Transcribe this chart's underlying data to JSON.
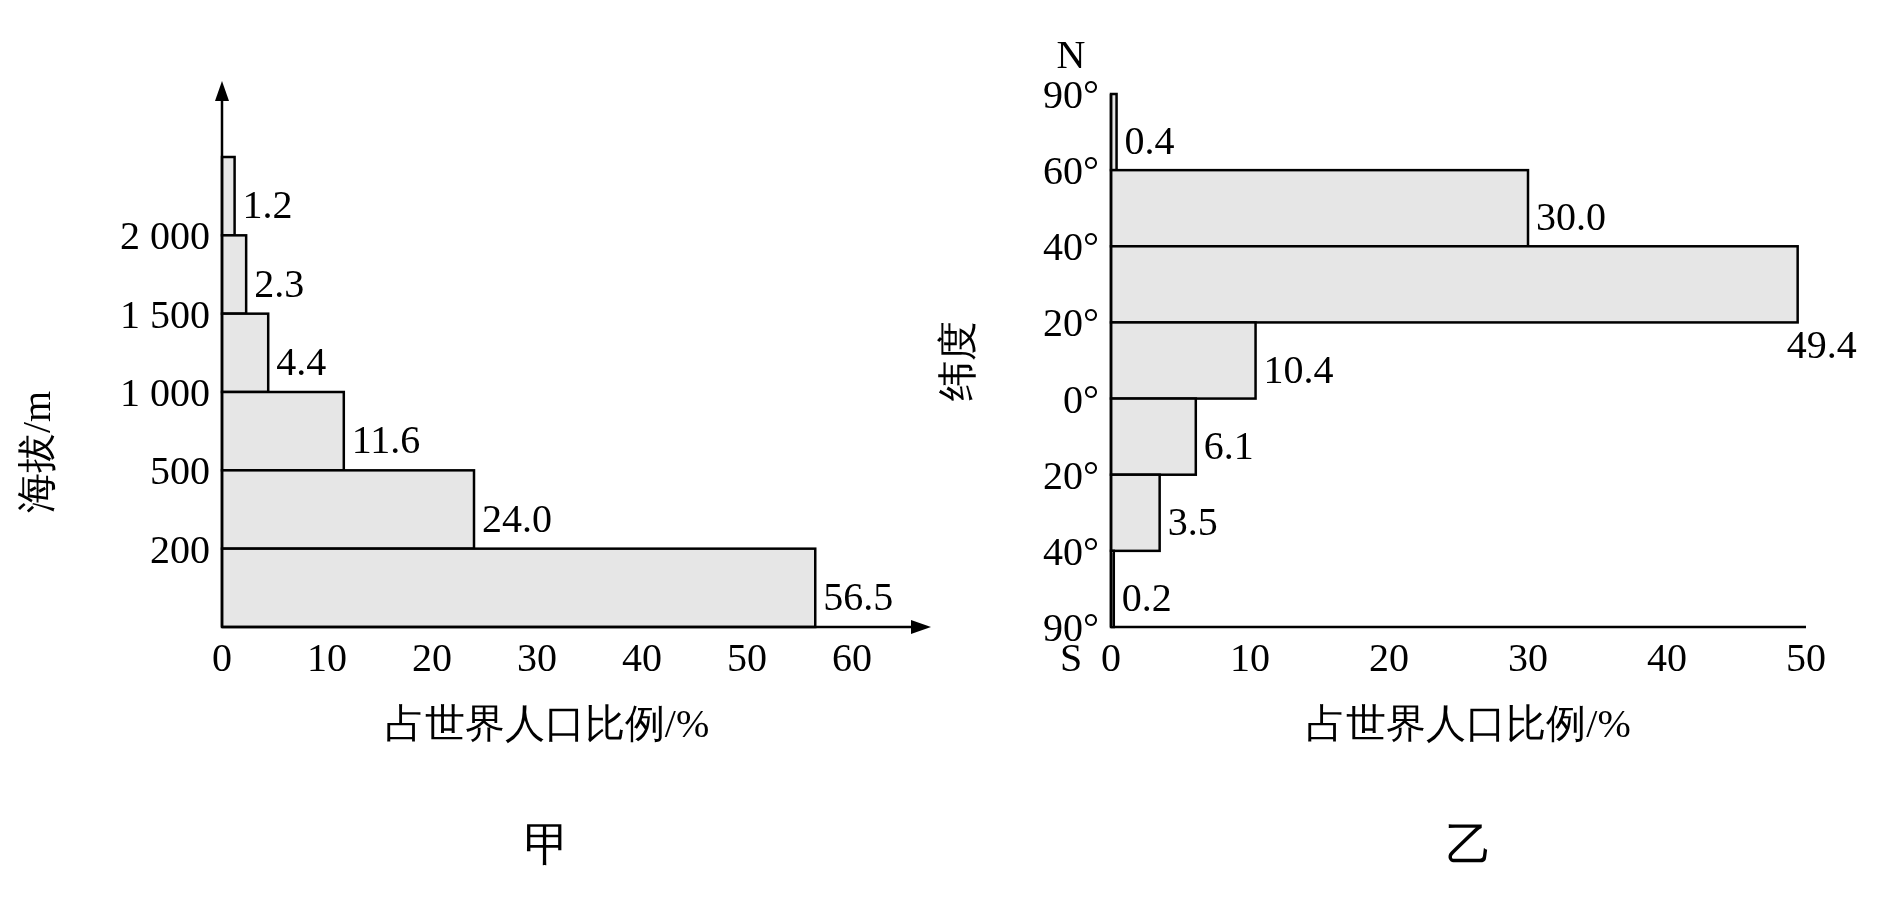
{
  "chart_data": [
    {
      "type": "bar",
      "orientation": "horizontal",
      "title": "甲",
      "xlabel": "占世界人口比例/%",
      "ylabel": "海拔/m",
      "categories": [
        null,
        null,
        null,
        null,
        null,
        null
      ],
      "values": [
        1.2,
        2.3,
        4.4,
        11.6,
        24.0,
        56.5
      ],
      "value_labels": [
        "1.2",
        "2.3",
        "4.4",
        "11.6",
        "24.0",
        "56.5"
      ],
      "color": "#e6e6e6",
      "xlim": [
        0,
        66
      ],
      "xticks": [
        0,
        10,
        20,
        30,
        40,
        50,
        60
      ],
      "annotations": [
        "2 000",
        "1 500",
        "1 000",
        "500",
        "200"
      ]
    },
    {
      "type": "bar",
      "orientation": "horizontal",
      "title": "乙",
      "xlabel": "占世界人口比例/%",
      "ylabel": "纬度",
      "categories": [
        null,
        null,
        null,
        null,
        null,
        null,
        null
      ],
      "values": [
        0.4,
        30.0,
        49.4,
        10.4,
        6.1,
        3.5,
        0.2
      ],
      "value_labels": [
        "0.4",
        "30.0",
        "49.4",
        "10.4",
        "6.1",
        "3.5",
        "0.2"
      ],
      "color": "#e6e6e6",
      "xlim": [
        0,
        50
      ],
      "xticks": [
        0,
        10,
        20,
        30,
        40,
        50
      ],
      "annotations": [
        "90°",
        "60°",
        "40°",
        "20°",
        "0°",
        "20°",
        "40°",
        "90°",
        "N",
        "S"
      ]
    }
  ]
}
